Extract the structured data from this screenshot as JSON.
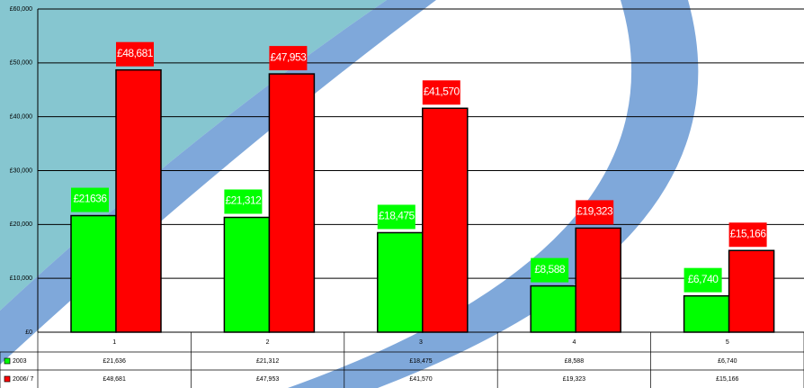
{
  "chart_data": {
    "type": "bar",
    "categories": [
      "1",
      "2",
      "3",
      "4",
      "5"
    ],
    "series": [
      {
        "name": "2003",
        "color": "#00ff00",
        "values": [
          21636,
          21312,
          18475,
          8588,
          6740
        ],
        "value_labels": [
          "£21636",
          "£21,312",
          "£18,475",
          "£8,588",
          "£6,740"
        ],
        "table_labels": [
          "£21,636",
          "£21,312",
          "£18,475",
          "£8,588",
          "£6,740"
        ]
      },
      {
        "name": "2006/ 7",
        "color": "#ff0000",
        "values": [
          48681,
          47953,
          41570,
          19323,
          15166
        ],
        "value_labels": [
          "£48,681",
          "£47,953",
          "£41,570",
          "£19,323",
          "£15,166"
        ],
        "table_labels": [
          "£48,681",
          "£47,953",
          "£41,570",
          "£19,323",
          "£15,166"
        ]
      }
    ],
    "ylim": [
      0,
      60000
    ],
    "yticks": [
      {
        "value": 0,
        "label": "£0"
      },
      {
        "value": 10000,
        "label": "£10,000"
      },
      {
        "value": 20000,
        "label": "£20,000"
      },
      {
        "value": 30000,
        "label": "£30,000"
      },
      {
        "value": 40000,
        "label": "£40,000"
      },
      {
        "value": 50000,
        "label": "£50,000"
      },
      {
        "value": 60000,
        "label": "£60,000"
      }
    ],
    "grid": true
  }
}
